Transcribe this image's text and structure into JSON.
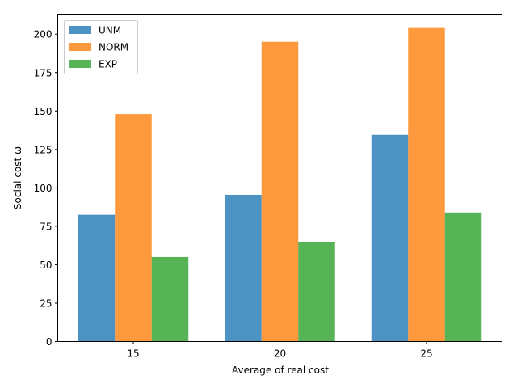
{
  "chart_data": {
    "type": "bar",
    "categories": [
      "15",
      "20",
      "25"
    ],
    "series": [
      {
        "name": "UNM",
        "color": "#1f77b4",
        "values": [
          82.5,
          95.5,
          134.5
        ]
      },
      {
        "name": "NORM",
        "color": "#ff7f0e",
        "values": [
          148,
          195,
          204
        ]
      },
      {
        "name": "EXP",
        "color": "#2ca02c",
        "values": [
          55,
          64.5,
          84
        ]
      }
    ],
    "title": "",
    "xlabel": "Average of real cost",
    "ylabel": "Social cost ω",
    "ylim": [
      0,
      213
    ],
    "yticks": [
      0,
      25,
      50,
      75,
      100,
      125,
      150,
      175,
      200
    ],
    "legend": "top-left",
    "grid": false
  }
}
